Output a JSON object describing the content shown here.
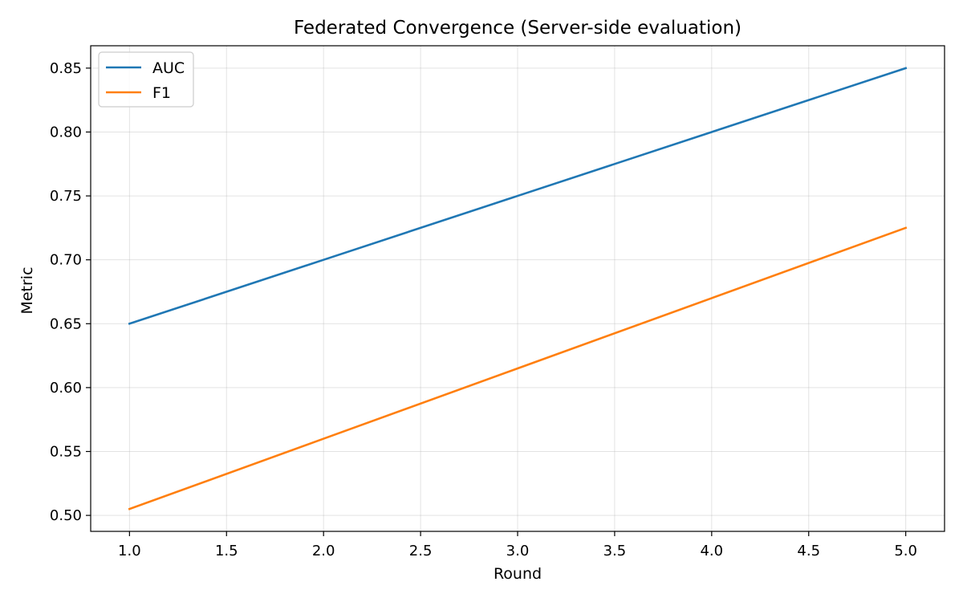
{
  "chart_data": {
    "type": "line",
    "title": "Federated Convergence (Server-side evaluation)",
    "xlabel": "Round",
    "ylabel": "Metric",
    "x": [
      1,
      2,
      3,
      4,
      5
    ],
    "series": [
      {
        "name": "AUC",
        "color": "#1f77b4",
        "values": [
          0.65,
          0.7,
          0.75,
          0.8,
          0.85
        ]
      },
      {
        "name": "F1",
        "color": "#ff7f0e",
        "values": [
          0.505,
          0.56,
          0.615,
          0.67,
          0.725
        ]
      }
    ],
    "xlim": [
      0.8,
      5.2
    ],
    "ylim": [
      0.4875,
      0.8675
    ],
    "xticks": [
      1.0,
      1.5,
      2.0,
      2.5,
      3.0,
      3.5,
      4.0,
      4.5,
      5.0
    ],
    "xtick_labels": [
      "1.0",
      "1.5",
      "2.0",
      "2.5",
      "3.0",
      "3.5",
      "4.0",
      "4.5",
      "5.0"
    ],
    "yticks": [
      0.5,
      0.55,
      0.6,
      0.65,
      0.7,
      0.75,
      0.8,
      0.85
    ],
    "ytick_labels": [
      "0.50",
      "0.55",
      "0.60",
      "0.65",
      "0.70",
      "0.75",
      "0.80",
      "0.85"
    ],
    "grid": true,
    "legend_position": "top-left"
  }
}
